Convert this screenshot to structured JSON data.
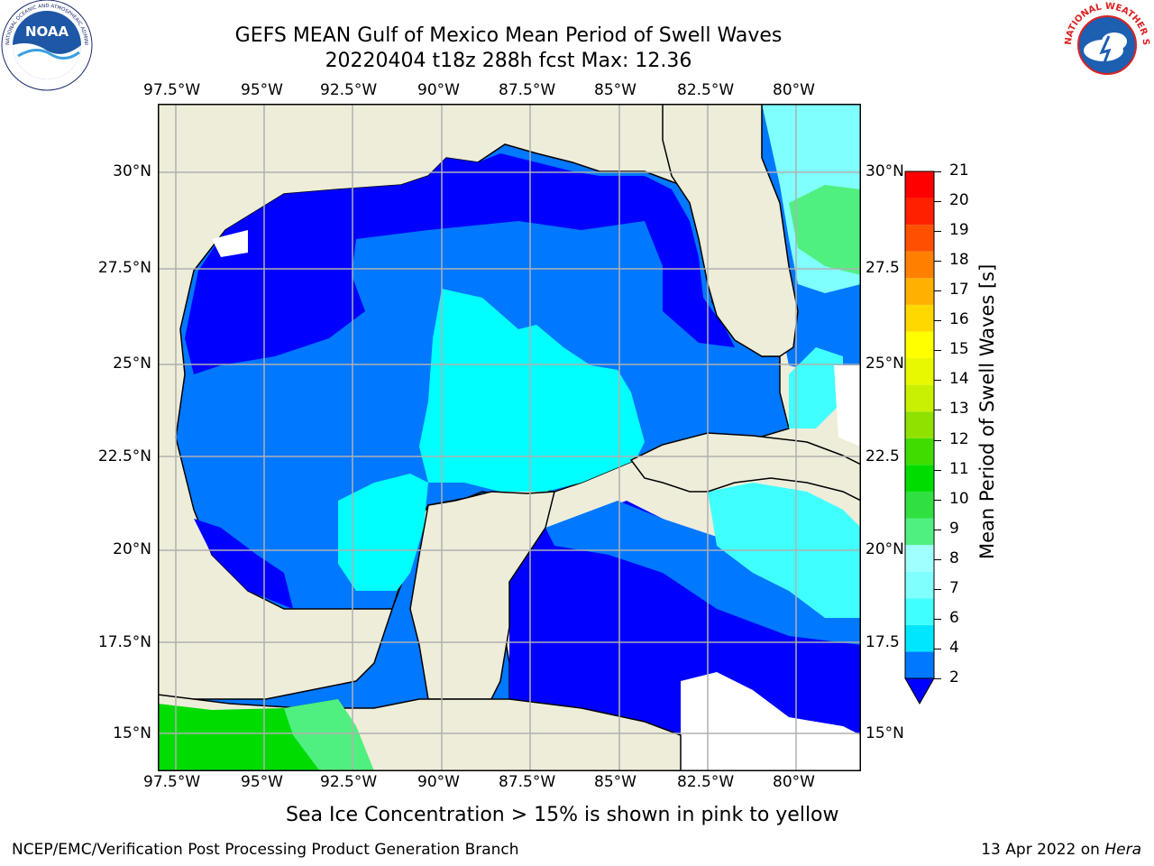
{
  "title": {
    "line1": "GEFS MEAN Gulf of Mexico Mean Period of Swell Waves",
    "line2": "20220404 t18z 288h fcst   Max: 12.36"
  },
  "logos": {
    "left": {
      "icon": "noaa-logo-icon",
      "text": "NOAA",
      "ring_text": "NATIONAL OCEANIC AND ATMOSPHERIC ADMINISTRATION · U.S. DEPARTMENT OF COMMERCE"
    },
    "right": {
      "icon": "nws-logo-icon",
      "ring_text": "NATIONAL WEATHER SERVICE"
    }
  },
  "map": {
    "lon_labels": [
      "97.5°W",
      "95°W",
      "92.5°W",
      "90°W",
      "87.5°W",
      "85°W",
      "82.5°W",
      "80°W"
    ],
    "lat_labels_left": [
      "30°N",
      "27.5°N",
      "25°N",
      "22.5°N",
      "20°N",
      "17.5°N",
      "15°N"
    ],
    "lat_labels_right": [
      "30°N",
      "27.5",
      "25°N",
      "22.5",
      "20°N",
      "17.5",
      "15°N"
    ],
    "lon_range": [
      -98,
      -79
    ],
    "lat_range": [
      14,
      31.75
    ],
    "land_color": "#eeedda",
    "grid_color": "#b0b0b0"
  },
  "colorbar": {
    "title": "Mean Period of Swell Waves [s]",
    "tick_labels": [
      "2",
      "4",
      "6",
      "7",
      "8",
      "9",
      "10",
      "11",
      "12",
      "13",
      "14",
      "15",
      "16",
      "17",
      "18",
      "19",
      "20",
      "21"
    ],
    "colors": [
      "#0078ff",
      "#00e6ff",
      "#40ffff",
      "#80ffff",
      "#a0ffff",
      "#50f080",
      "#30e040",
      "#00dc00",
      "#40dc00",
      "#90e000",
      "#c8f000",
      "#e8f800",
      "#ffff00",
      "#ffd800",
      "#ffb000",
      "#ff8000",
      "#ff5000",
      "#ff2000",
      "#ff0000"
    ],
    "extend_color": "#0000ff"
  },
  "caption": "Sea Ice Concentration > 15% is shown in pink to yellow",
  "footer": {
    "left": "NCEP/EMC/Verification Post Processing Product Generation Branch",
    "date": "13 Apr 2022 on",
    "machine": "Hera"
  }
}
